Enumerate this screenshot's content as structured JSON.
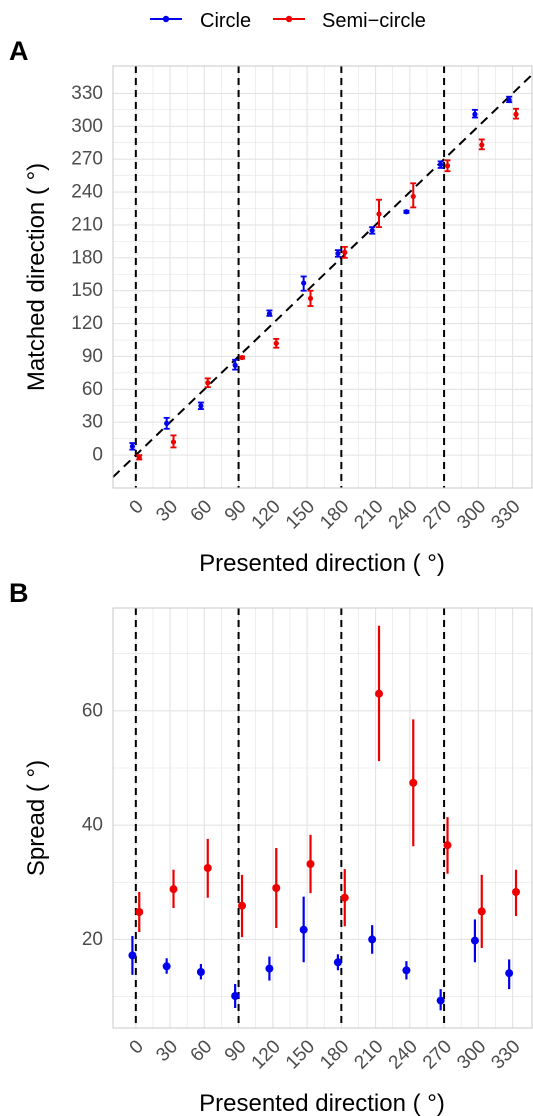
{
  "legend": {
    "position": "top",
    "items": [
      {
        "label": "Circle",
        "color": "#0000ee"
      },
      {
        "label": "Semi−circle",
        "color": "#ee0000"
      }
    ]
  },
  "colors": {
    "circle": "#0000ee",
    "semicircle": "#ee0000",
    "grid": "#e3e3e3",
    "panel_border": "#c8c8c8",
    "reference_line": "#000000"
  },
  "chart_data": [
    {
      "panel": "A",
      "type": "scatter",
      "xlabel": "Presented direction ( °)",
      "ylabel": "Matched direction ( °)",
      "xlim": [
        -20,
        347
      ],
      "ylim": [
        -30,
        355
      ],
      "x_ticks": [
        0,
        30,
        60,
        90,
        120,
        150,
        180,
        210,
        240,
        270,
        300,
        330
      ],
      "x_tick_labels": [
        "0",
        "30",
        "60",
        "90",
        "120",
        "150",
        "180",
        "210",
        "240",
        "270",
        "300",
        "330"
      ],
      "y_ticks": [
        0,
        30,
        60,
        90,
        120,
        150,
        180,
        210,
        240,
        270,
        300,
        330
      ],
      "y_tick_labels": [
        "0",
        "30",
        "60",
        "90",
        "120",
        "150",
        "180",
        "210",
        "240",
        "270",
        "300",
        "330"
      ],
      "grid": true,
      "vertical_reference_lines": [
        0,
        90,
        180,
        270
      ],
      "identity_line": true,
      "series": [
        {
          "name": "Circle",
          "color": "#0000ee",
          "x": [
            -3,
            27,
            57,
            87,
            117,
            147,
            177,
            207,
            237,
            267,
            297,
            327
          ],
          "y": [
            8,
            29,
            45,
            82,
            129,
            157,
            184,
            205,
            222,
            265,
            311,
            324
          ],
          "err_low": [
            5,
            24,
            42,
            78,
            127,
            150,
            181,
            202,
            221,
            262,
            308,
            322
          ],
          "err_high": [
            11,
            34,
            48,
            87,
            132,
            163,
            187,
            208,
            223,
            268,
            315,
            327
          ]
        },
        {
          "name": "Semi−circle",
          "color": "#ee0000",
          "x": [
            3,
            33,
            63,
            93,
            123,
            153,
            183,
            213,
            243,
            273,
            303,
            333
          ],
          "y": [
            -2,
            12,
            66,
            89,
            102,
            143,
            185,
            220,
            236,
            264,
            283,
            311
          ],
          "err_low": [
            -4,
            7,
            62,
            88,
            98,
            136,
            180,
            208,
            226,
            259,
            279,
            307
          ],
          "err_high": [
            0,
            18,
            70,
            90,
            106,
            150,
            190,
            233,
            248,
            269,
            288,
            316
          ]
        }
      ]
    },
    {
      "panel": "B",
      "type": "scatter",
      "xlabel": "Presented direction ( °)",
      "ylabel": "Spread ( °)",
      "xlim": [
        -20,
        347
      ],
      "ylim": [
        4.5,
        78
      ],
      "x_ticks": [
        0,
        30,
        60,
        90,
        120,
        150,
        180,
        210,
        240,
        270,
        300,
        330
      ],
      "x_tick_labels": [
        "0",
        "30",
        "60",
        "90",
        "120",
        "150",
        "180",
        "210",
        "240",
        "270",
        "300",
        "330"
      ],
      "y_ticks": [
        20,
        40,
        60
      ],
      "y_tick_labels": [
        "20",
        "40",
        "60"
      ],
      "y_minor": [
        10,
        30,
        50,
        70
      ],
      "grid": true,
      "vertical_reference_lines": [
        0,
        90,
        180,
        270
      ],
      "identity_line": false,
      "series": [
        {
          "name": "Circle",
          "color": "#0000ee",
          "x": [
            -3,
            27,
            57,
            87,
            117,
            147,
            177,
            207,
            237,
            267,
            297,
            327
          ],
          "y": [
            17.2,
            15.3,
            14.3,
            10.1,
            14.9,
            21.7,
            16.0,
            20.0,
            14.6,
            9.3,
            19.8,
            14.1
          ],
          "err_low": [
            13.8,
            14.0,
            13.0,
            8.0,
            12.8,
            16.0,
            14.6,
            17.5,
            13.0,
            7.6,
            16.0,
            11.3
          ],
          "err_high": [
            20.6,
            16.7,
            15.7,
            12.2,
            17.0,
            27.5,
            17.4,
            22.5,
            16.2,
            11.3,
            23.5,
            16.5
          ]
        },
        {
          "name": "Semi−circle",
          "color": "#ee0000",
          "x": [
            3,
            33,
            63,
            93,
            123,
            153,
            183,
            213,
            243,
            273,
            303,
            333
          ],
          "y": [
            24.8,
            28.8,
            32.5,
            25.9,
            29.0,
            33.2,
            27.3,
            63.0,
            47.4,
            36.5,
            24.9,
            28.3
          ],
          "err_low": [
            21.3,
            25.5,
            27.3,
            20.4,
            22.0,
            28.1,
            22.3,
            51.2,
            36.3,
            31.5,
            18.5,
            24.1
          ],
          "err_high": [
            28.3,
            32.2,
            37.6,
            31.3,
            36.0,
            38.3,
            32.3,
            74.9,
            58.5,
            41.4,
            31.3,
            32.2
          ]
        }
      ]
    }
  ]
}
